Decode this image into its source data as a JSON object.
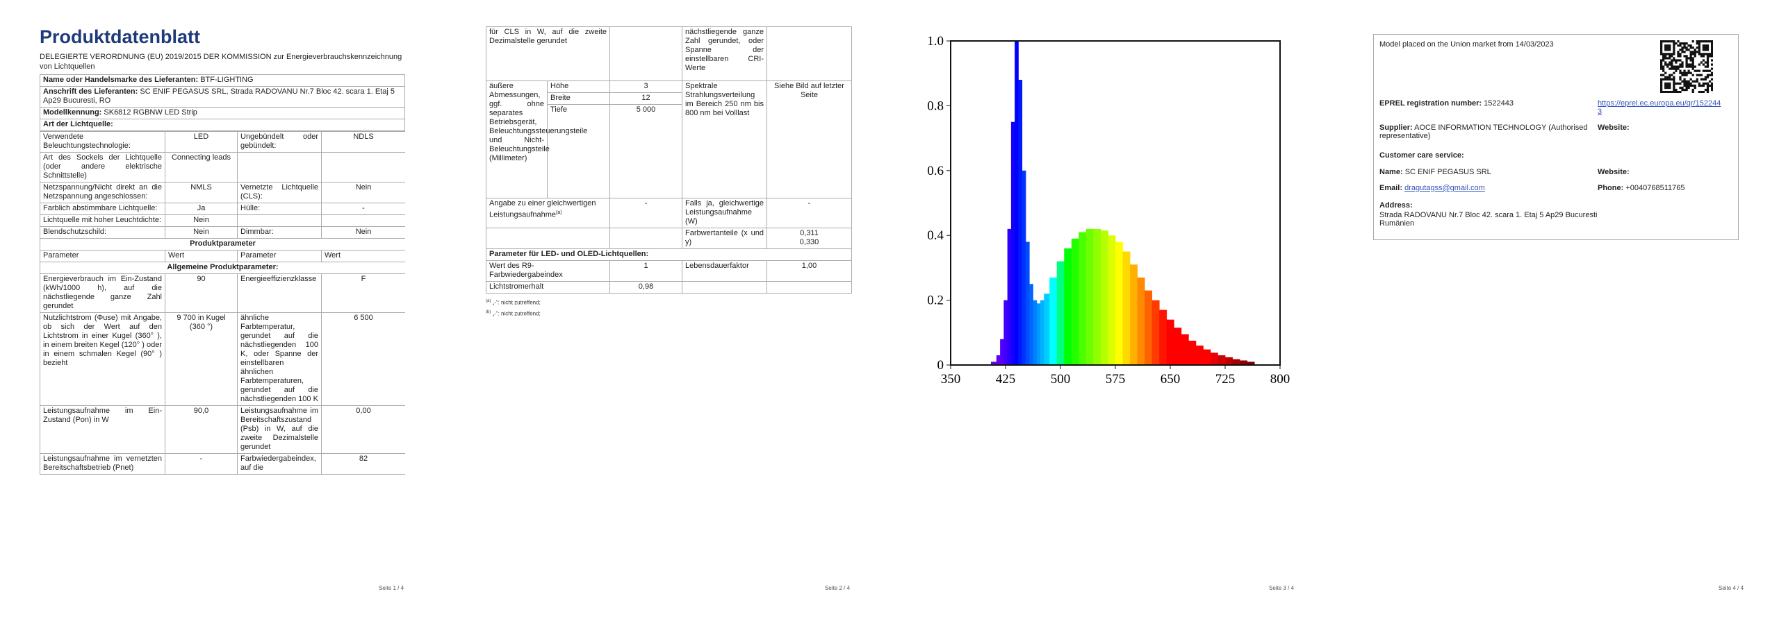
{
  "pages": [
    {
      "title": "Produktdatenblatt",
      "regulation": "DELEGIERTE VERORDNUNG (EU) 2019/2015 DER KOMMISSION zur Energieverbrauchskennzeichnung von Lichtquellen",
      "supplier_rows": [
        {
          "label": "Name oder Handelsmarke des Lieferanten:",
          "value": "BTF-LIGHTING"
        },
        {
          "label": "Anschrift des Lieferanten:",
          "value": "SC ENIF PEGASUS SRL, Strada RADOVANU Nr.7 Bloc 42. scara 1. Etaj 5 Ap29 Bucuresti, RO"
        },
        {
          "label": "Modellkennung:",
          "value": "SK6812 RGBNW LED Strip"
        }
      ],
      "light_source_heading": "Art der Lichtquelle:",
      "light_source_rows": [
        [
          "Verwendete Beleuchtungstechnologie:",
          "LED",
          "Ungebündelt oder gebündelt:",
          "NDLS"
        ],
        [
          "Art des Sockels der Lichtquelle (oder andere elektrische Schnittstelle)",
          "Connecting leads"
        ],
        [
          "Netzspannung/Nicht direkt an die Netzspannung angeschlossen:",
          "NMLS",
          "Vernetzte Lichtquelle (CLS):",
          "Nein"
        ],
        [
          "Farblich abstimmbare Lichtquelle:",
          "Ja",
          "Hülle:",
          "-"
        ],
        [
          "Lichtquelle mit hoher Leuchtdichte:",
          "Nein"
        ],
        [
          "Blendschutzschild:",
          "Nein",
          "Dimmbar:",
          "Nein"
        ]
      ],
      "parameters_heading": "Produktparameter",
      "parameters_header": [
        "Parameter",
        "Wert",
        "Parameter",
        "Wert"
      ],
      "general_heading": "Allgemeine Produktparameter:",
      "general_rows": [
        [
          "Energieverbrauch im Ein-Zustand (kWh/1000 h), auf die nächstliegende ganze Zahl gerundet",
          "90",
          "Energieeffizienzklasse",
          "F"
        ],
        [
          "Nutzlichtstrom (Φuse) mit Angabe, ob sich der Wert auf den Lichtstrom in einer Kugel (360° ), in einem breiten Kegel (120° ) oder in einem schmalen Kegel (90° ) bezieht",
          "9 700 in Kugel (360 °)",
          "ähnliche Farbtemperatur, gerundet auf die nächstliegenden 100 K, oder Spanne der einstellbaren ähnlichen Farbtemperaturen, gerundet auf die nächstliegenden 100 K",
          "6 500"
        ],
        [
          "Leistungsaufnahme im Ein-Zustand (Pon) in W",
          "90,0",
          "Leistungsaufnahme im Bereitschaftszustand (Psb) in W, auf die zweite Dezimalstelle gerundet",
          "0,00"
        ],
        [
          "Leistungsaufnahme im vernetzten Bereitschaftsbetrieb (Pnet)",
          "-",
          "Farbwiedergabeindex, auf die",
          "82"
        ]
      ],
      "footer": "Seite 1 / 4"
    },
    {
      "continued_row": [
        "für CLS in W, auf die zweite Dezimalstelle gerundet",
        "nächstliegende ganze Zahl gerundet, oder Spanne der einstellbaren CRI-Werte"
      ],
      "dimensions": {
        "label": "äußere Abmessungen, ggf. ohne separates Betriebsgerät, Beleuchtungssteuerungsteile und Nicht-Beleuchtungsteile (Millimeter)",
        "rows": [
          [
            "Höhe",
            "3"
          ],
          [
            "Breite",
            "12"
          ],
          [
            "Tiefe",
            "5 000"
          ]
        ],
        "label2": "Spektrale Strahlungsverteilung im Bereich 250 nm bis 800 nm bei Volllast",
        "value2": "Siehe Bild auf letzter Seite"
      },
      "equivalent_row": [
        "Angabe zu einer gleichwertigen Leistungsaufnahme",
        "(a)",
        "-",
        "Falls ja, gleichwertige Leistungsaufnahme (W)",
        "-"
      ],
      "chromaticity_row": [
        "Farbwertanteile (x und y)",
        "0,311\n0,330"
      ],
      "led_heading": "Parameter für LED- und OLED-Lichtquellen:",
      "led_rows": [
        [
          "Wert des R9-Farbwiedergabeindex",
          "1",
          "Lebensdauerfaktor",
          "1,00"
        ],
        [
          "Lichtstromerhalt",
          "0,98"
        ]
      ],
      "notes": [
        {
          "mark": "(a)",
          "text": "„-“: nicht zutreffend;"
        },
        {
          "mark": "(b)",
          "text": "„-“: nicht zutreffend;"
        }
      ],
      "footer": "Seite 2 / 4"
    },
    {
      "footer": "Seite 3 / 4"
    },
    {
      "market_date": "Model placed on the Union market from 14/03/2023",
      "eprel_label": "EPREL registration number:",
      "eprel_number": "1522443",
      "eprel_link": "https://eprel.ec.europa.eu/qr/1522443",
      "supplier_label": "Supplier:",
      "supplier_value": "AOCE INFORMATION TECHNOLOGY (Authorised representative)",
      "website_label": "Website:",
      "customer_care": "Customer care service:",
      "name_label": "Name:",
      "name_value": "SC ENIF PEGASUS SRL",
      "website_label2": "Website:",
      "email_label": "Email:",
      "email_value": "dragutagss@gmail.com",
      "phone_label": "Phone:",
      "phone_value": "+0040768511765",
      "address_label": "Address:",
      "address_value": "Strada RADOVANU Nr.7 Bloc 42. scara 1. Etaj 5 Ap29 Bucuresti\nRumänien",
      "footer": "Seite 4 / 4"
    }
  ],
  "chart_data": {
    "type": "spectrum",
    "x": [
      400,
      410,
      415,
      420,
      425,
      430,
      435,
      440,
      445,
      450,
      455,
      460,
      465,
      470,
      475,
      480,
      490,
      500,
      510,
      520,
      530,
      540,
      550,
      560,
      570,
      580,
      590,
      600,
      610,
      620,
      630,
      640,
      650,
      660,
      670,
      680,
      690,
      700,
      710,
      720,
      730,
      740,
      750,
      760,
      770
    ],
    "values": [
      0,
      0.01,
      0.03,
      0.08,
      0.2,
      0.42,
      0.75,
      1.0,
      0.88,
      0.6,
      0.38,
      0.25,
      0.2,
      0.19,
      0.2,
      0.22,
      0.27,
      0.32,
      0.36,
      0.39,
      0.41,
      0.42,
      0.42,
      0.415,
      0.4,
      0.38,
      0.35,
      0.31,
      0.27,
      0.23,
      0.2,
      0.17,
      0.14,
      0.115,
      0.095,
      0.075,
      0.06,
      0.048,
      0.038,
      0.03,
      0.024,
      0.018,
      0.014,
      0.01,
      0
    ],
    "xlim": [
      350,
      800
    ],
    "ylim": [
      0,
      1
    ],
    "xticks": [
      350,
      425,
      500,
      575,
      650,
      725,
      800
    ],
    "yticks": [
      0,
      0.2,
      0.4,
      0.6,
      0.8,
      {
        "value": 1,
        "label": "1.0"
      }
    ]
  }
}
